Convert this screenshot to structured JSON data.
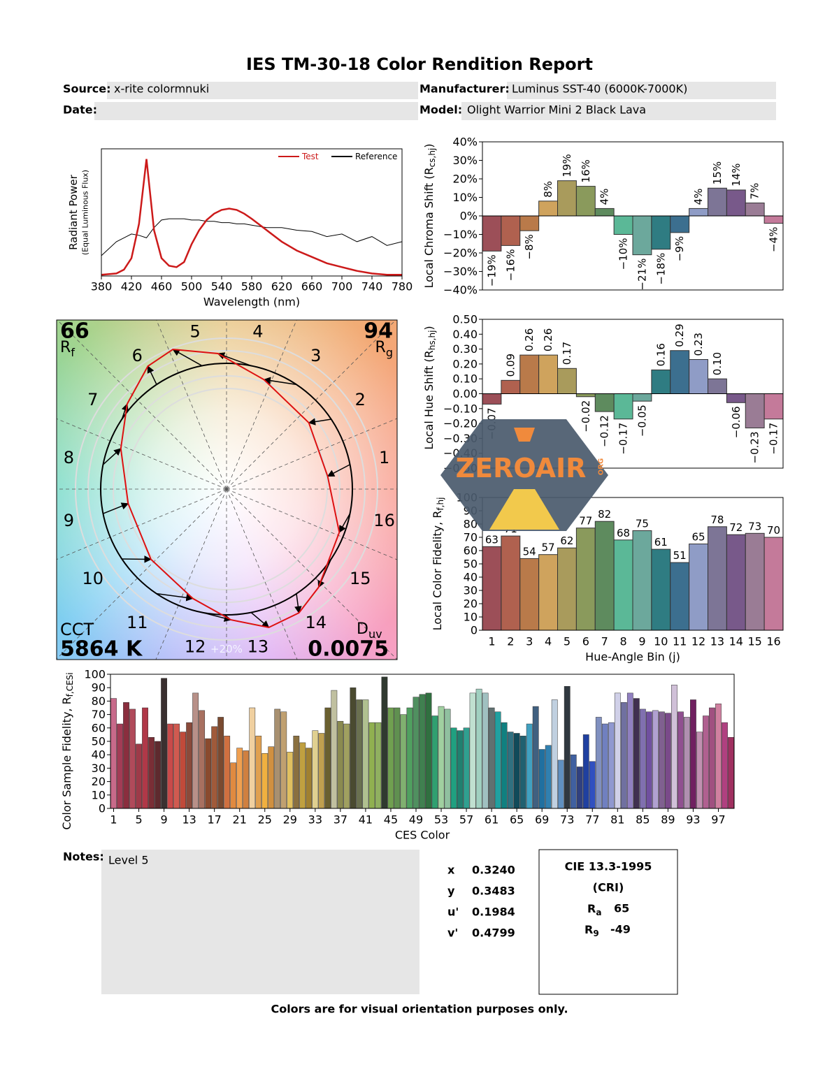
{
  "header": {
    "title": "IES TM-30-18 Color Rendition Report",
    "source_label": "Source:",
    "source": "x-rite colormnuki",
    "manufacturer_label": "Manufacturer:",
    "manufacturer": "Luminus SST-40 (6000K-7000K)",
    "date_label": "Date:",
    "model_label": "Model:",
    "model": "Olight Warrior Mini 2 Black Lava"
  },
  "chart_data": [
    {
      "type": "line",
      "x": [
        380,
        400,
        410,
        420,
        430,
        440,
        450,
        460,
        470,
        480,
        490,
        500,
        510,
        520,
        530,
        540,
        550,
        560,
        570,
        580,
        600,
        620,
        640,
        660,
        680,
        700,
        720,
        740,
        760,
        780
      ],
      "series": [
        {
          "name": "Test",
          "color": "#cc1a1a",
          "values": [
            0.01,
            0.02,
            0.05,
            0.14,
            0.41,
            0.92,
            0.36,
            0.14,
            0.08,
            0.07,
            0.11,
            0.25,
            0.36,
            0.44,
            0.49,
            0.52,
            0.53,
            0.52,
            0.49,
            0.45,
            0.36,
            0.27,
            0.2,
            0.15,
            0.1,
            0.07,
            0.04,
            0.02,
            0.01,
            0.01
          ]
        },
        {
          "name": "Reference",
          "color": "#000000",
          "values": [
            0.16,
            0.27,
            0.3,
            0.33,
            0.32,
            0.3,
            0.38,
            0.44,
            0.45,
            0.45,
            0.45,
            0.44,
            0.44,
            0.43,
            0.43,
            0.42,
            0.42,
            0.41,
            0.41,
            0.4,
            0.38,
            0.38,
            0.36,
            0.35,
            0.31,
            0.33,
            0.27,
            0.31,
            0.24,
            0.27
          ]
        }
      ],
      "xlim": [
        380,
        780
      ],
      "ylim": [
        0,
        1
      ],
      "xticks": [
        380,
        420,
        460,
        500,
        540,
        580,
        620,
        660,
        700,
        740,
        780
      ],
      "x_label": "Wavelength (nm)",
      "y_label": "Radiant Power",
      "y_label_note": "(Equal Luminous Flux)",
      "legend": "upper right"
    },
    {
      "type": "bar",
      "values": [
        -19,
        -16,
        -8,
        8,
        19,
        16,
        4,
        -10,
        -21,
        -18,
        -9,
        4,
        15,
        14,
        7,
        -4
      ],
      "value_labels": [
        "−19%",
        "−16%",
        "−8%",
        "8%",
        "19%",
        "16%",
        "4%",
        "−10%",
        "−21%",
        "−18%",
        "−9%",
        "4%",
        "15%",
        "14%",
        "7%",
        "−4%"
      ],
      "colors": [
        "#9c4f58",
        "#b0614f",
        "#b97a4a",
        "#cfa35d",
        "#a99b5c",
        "#8a9a5c",
        "#5e8b5e",
        "#5bb897",
        "#6ca89c",
        "#2f7c82",
        "#3c6f8f",
        "#8f9cc6",
        "#7d7596",
        "#78598a",
        "#9a7c95",
        "#c47a9a"
      ],
      "ylim": [
        -40,
        40
      ],
      "yticks": [
        {
          "value": -40,
          "label": "−40%"
        },
        {
          "value": -30,
          "label": "−30%"
        },
        {
          "value": -20,
          "label": "−20%"
        },
        {
          "value": -10,
          "label": "−10%"
        },
        {
          "value": 0,
          "label": "0%"
        },
        {
          "value": 10,
          "label": "10%"
        },
        {
          "value": 20,
          "label": "20%"
        },
        {
          "value": 30,
          "label": "30%"
        },
        {
          "value": 40,
          "label": "40%"
        }
      ],
      "y_label": {
        "text": "Local Chroma Shift (R",
        "sub": "cs,hj",
        "end": ")"
      }
    },
    {
      "type": "bar",
      "values": [
        -0.07,
        0.09,
        0.26,
        0.26,
        0.17,
        -0.02,
        -0.12,
        -0.17,
        -0.05,
        0.16,
        0.29,
        0.23,
        0.1,
        -0.06,
        -0.23,
        -0.17
      ],
      "value_labels": [
        "−0.07",
        "0.09",
        "0.26",
        "0.26",
        "0.17",
        "−0.02",
        "−0.12",
        "−0.17",
        "−0.05",
        "0.16",
        "0.29",
        "0.23",
        "0.10",
        "−0.06",
        "−0.23",
        "−0.17"
      ],
      "colors": [
        "#9c4f58",
        "#b0614f",
        "#b97a4a",
        "#cfa35d",
        "#a99b5c",
        "#8a9a5c",
        "#5e8b5e",
        "#5bb897",
        "#6ca89c",
        "#2f7c82",
        "#3c6f8f",
        "#8f9cc6",
        "#7d7596",
        "#78598a",
        "#9a7c95",
        "#c47a9a"
      ],
      "ylim": [
        -0.5,
        0.5
      ],
      "yticks": [
        {
          "value": -0.5,
          "label": "−0.50"
        },
        {
          "value": -0.4,
          "label": "−0.40"
        },
        {
          "value": -0.3,
          "label": "−0.30"
        },
        {
          "value": -0.2,
          "label": "−0.20"
        },
        {
          "value": -0.1,
          "label": "−0.10"
        },
        {
          "value": 0,
          "label": "0.00"
        },
        {
          "value": 0.1,
          "label": "0.10"
        },
        {
          "value": 0.2,
          "label": "0.20"
        },
        {
          "value": 0.3,
          "label": "0.30"
        },
        {
          "value": 0.4,
          "label": "0.40"
        },
        {
          "value": 0.5,
          "label": "0.50"
        }
      ],
      "y_label": {
        "text": "Local Hue Shift (R",
        "sub": "hs,hj",
        "end": ")"
      }
    },
    {
      "type": "bar",
      "categories": [
        "1",
        "2",
        "3",
        "4",
        "5",
        "6",
        "7",
        "8",
        "9",
        "10",
        "11",
        "12",
        "13",
        "14",
        "15",
        "16"
      ],
      "values": [
        63,
        71,
        54,
        57,
        62,
        77,
        82,
        68,
        75,
        61,
        51,
        65,
        78,
        72,
        73,
        70
      ],
      "colors": [
        "#9c4f58",
        "#b0614f",
        "#b97a4a",
        "#cfa35d",
        "#a99b5c",
        "#8a9a5c",
        "#5e8b5e",
        "#5bb897",
        "#6ca89c",
        "#2f7c82",
        "#3c6f8f",
        "#8f9cc6",
        "#7d7596",
        "#78598a",
        "#9a7c95",
        "#c47a9a"
      ],
      "ylim": [
        0,
        100
      ],
      "yticks": [
        0,
        10,
        20,
        30,
        40,
        50,
        60,
        70,
        80,
        90,
        100
      ],
      "x_label": "Hue-Angle Bin (j)",
      "y_label": {
        "text": "Local Color Fidelity, R",
        "sub": "f,hj",
        "end": ""
      }
    },
    {
      "type": "vector",
      "rf": 66,
      "rf_symbol": "R",
      "rf_sub": "f",
      "rg": 94,
      "rg_symbol": "R",
      "rg_sub": "g",
      "cct_label": "CCT",
      "cct": "5864 K",
      "duv_symbol": "D",
      "duv_sub": "uv",
      "duv": 0.0075,
      "ring_label": "+20%",
      "bin_labels": [
        "1",
        "2",
        "3",
        "4",
        "5",
        "6",
        "7",
        "8",
        "9",
        "10",
        "11",
        "12",
        "13",
        "14",
        "15",
        "16"
      ]
    },
    {
      "type": "bar",
      "x": [
        1,
        2,
        3,
        4,
        5,
        6,
        7,
        8,
        9,
        10,
        11,
        12,
        13,
        14,
        15,
        16,
        17,
        18,
        19,
        20,
        21,
        22,
        23,
        24,
        25,
        26,
        27,
        28,
        29,
        30,
        31,
        32,
        33,
        34,
        35,
        36,
        37,
        38,
        39,
        40,
        41,
        42,
        43,
        44,
        45,
        46,
        47,
        48,
        49,
        50,
        51,
        52,
        53,
        54,
        55,
        56,
        57,
        58,
        59,
        60,
        61,
        62,
        63,
        64,
        65,
        66,
        67,
        68,
        69,
        70,
        71,
        72,
        73,
        74,
        75,
        76,
        77,
        78,
        79,
        80,
        81,
        82,
        83,
        84,
        85,
        86,
        87,
        88,
        89,
        90,
        91,
        92,
        93,
        94,
        95,
        96,
        97,
        98,
        99
      ],
      "values": [
        82,
        63,
        79,
        74,
        48,
        75,
        53,
        50,
        97,
        63,
        63,
        57,
        64,
        86,
        73,
        52,
        61,
        68,
        54,
        34,
        45,
        43,
        75,
        54,
        41,
        46,
        74,
        72,
        42,
        54,
        49,
        45,
        58,
        56,
        75,
        88,
        65,
        63,
        90,
        81,
        81,
        64,
        64,
        98,
        75,
        75,
        70,
        75,
        83,
        85,
        86,
        69,
        76,
        74,
        60,
        58,
        60,
        86,
        89,
        86,
        75,
        72,
        64,
        57,
        56,
        54,
        63,
        76,
        44,
        47,
        81,
        36,
        91,
        40,
        31,
        55,
        35,
        68,
        63,
        64,
        86,
        79,
        86,
        82,
        74,
        72,
        73,
        72,
        71,
        92,
        72,
        68,
        81,
        57,
        69,
        75,
        78,
        64,
        53
      ],
      "colors": [
        "#c86a8a",
        "#a33b55",
        "#8a2e3e",
        "#b04a5a",
        "#9e3a48",
        "#b03848",
        "#7a2e36",
        "#5e2a2e",
        "#3a3030",
        "#c84a4a",
        "#d05a50",
        "#c04a3a",
        "#8a4a3a",
        "#b89088",
        "#a87060",
        "#8a4a2e",
        "#a05a3a",
        "#7a4a30",
        "#d07040",
        "#e08a40",
        "#f0a050",
        "#d08040",
        "#f0d0a0",
        "#e0a050",
        "#f0b040",
        "#d09040",
        "#a89070",
        "#c0a070",
        "#e0c060",
        "#8a7040",
        "#c0a040",
        "#a08030",
        "#e0d090",
        "#c0a050",
        "#6a6030",
        "#c0c0a0",
        "#8a8a50",
        "#a0a060",
        "#4a4a30",
        "#6a7050",
        "#b0c090",
        "#90b050",
        "#90b060",
        "#303a30",
        "#70a050",
        "#609050",
        "#80b070",
        "#50a060",
        "#509060",
        "#408050",
        "#307040",
        "#30a070",
        "#a0d0a0",
        "#90c0a0",
        "#20a080",
        "#208070",
        "#30a090",
        "#c0e0d0",
        "#a0d0c0",
        "#a0c0c0",
        "#607070",
        "#20a0a0",
        "#108080",
        "#307080",
        "#104a5a",
        "#206070",
        "#40a0c0",
        "#406080",
        "#2070a0",
        "#3080b0",
        "#c0d0e0",
        "#6090c0",
        "#303840",
        "#4060a0",
        "#304080",
        "#2040a0",
        "#3050c0",
        "#8090c0",
        "#7080c0",
        "#9098d0",
        "#d0d0e8",
        "#7070a0",
        "#9080c0",
        "#403050",
        "#8070b0",
        "#7050a0",
        "#b0a0d0",
        "#806090",
        "#7a4a8a",
        "#d0c0d8",
        "#905090",
        "#b090b0",
        "#702060",
        "#c090b0",
        "#b06090",
        "#a05080",
        "#d080a0",
        "#b04080",
        "#a03060"
      ],
      "xlim": [
        0.5,
        99.5
      ],
      "xticks": [
        1,
        5,
        9,
        13,
        17,
        21,
        25,
        29,
        33,
        37,
        41,
        45,
        49,
        53,
        57,
        61,
        65,
        69,
        73,
        77,
        81,
        85,
        89,
        93,
        97
      ],
      "ylim": [
        0,
        100
      ],
      "yticks": [
        0,
        10,
        20,
        30,
        40,
        50,
        60,
        70,
        80,
        90,
        100
      ],
      "x_label": "CES Color",
      "y_label": {
        "text": "Color Sample Fidelity, R",
        "sub": "f,CESi",
        "end": ""
      }
    }
  ],
  "watermark": {
    "text": "ZEROAIR",
    "suffix": "ORG"
  },
  "notes": {
    "label": "Notes:",
    "text": "Level 5"
  },
  "chromaticity": [
    [
      "x",
      "0.3240"
    ],
    [
      "y",
      "0.3483"
    ],
    [
      "u'",
      "0.1984"
    ],
    [
      "v'",
      "0.4799"
    ]
  ],
  "cri": {
    "title": "CIE 13.3-1995",
    "subtitle": "(CRI)",
    "ra_symbol": "R",
    "ra_sub": "a",
    "ra": 65,
    "r9_symbol": "R",
    "r9_sub": "9",
    "r9": -49
  },
  "footer": "Colors are for visual orientation purposes only."
}
